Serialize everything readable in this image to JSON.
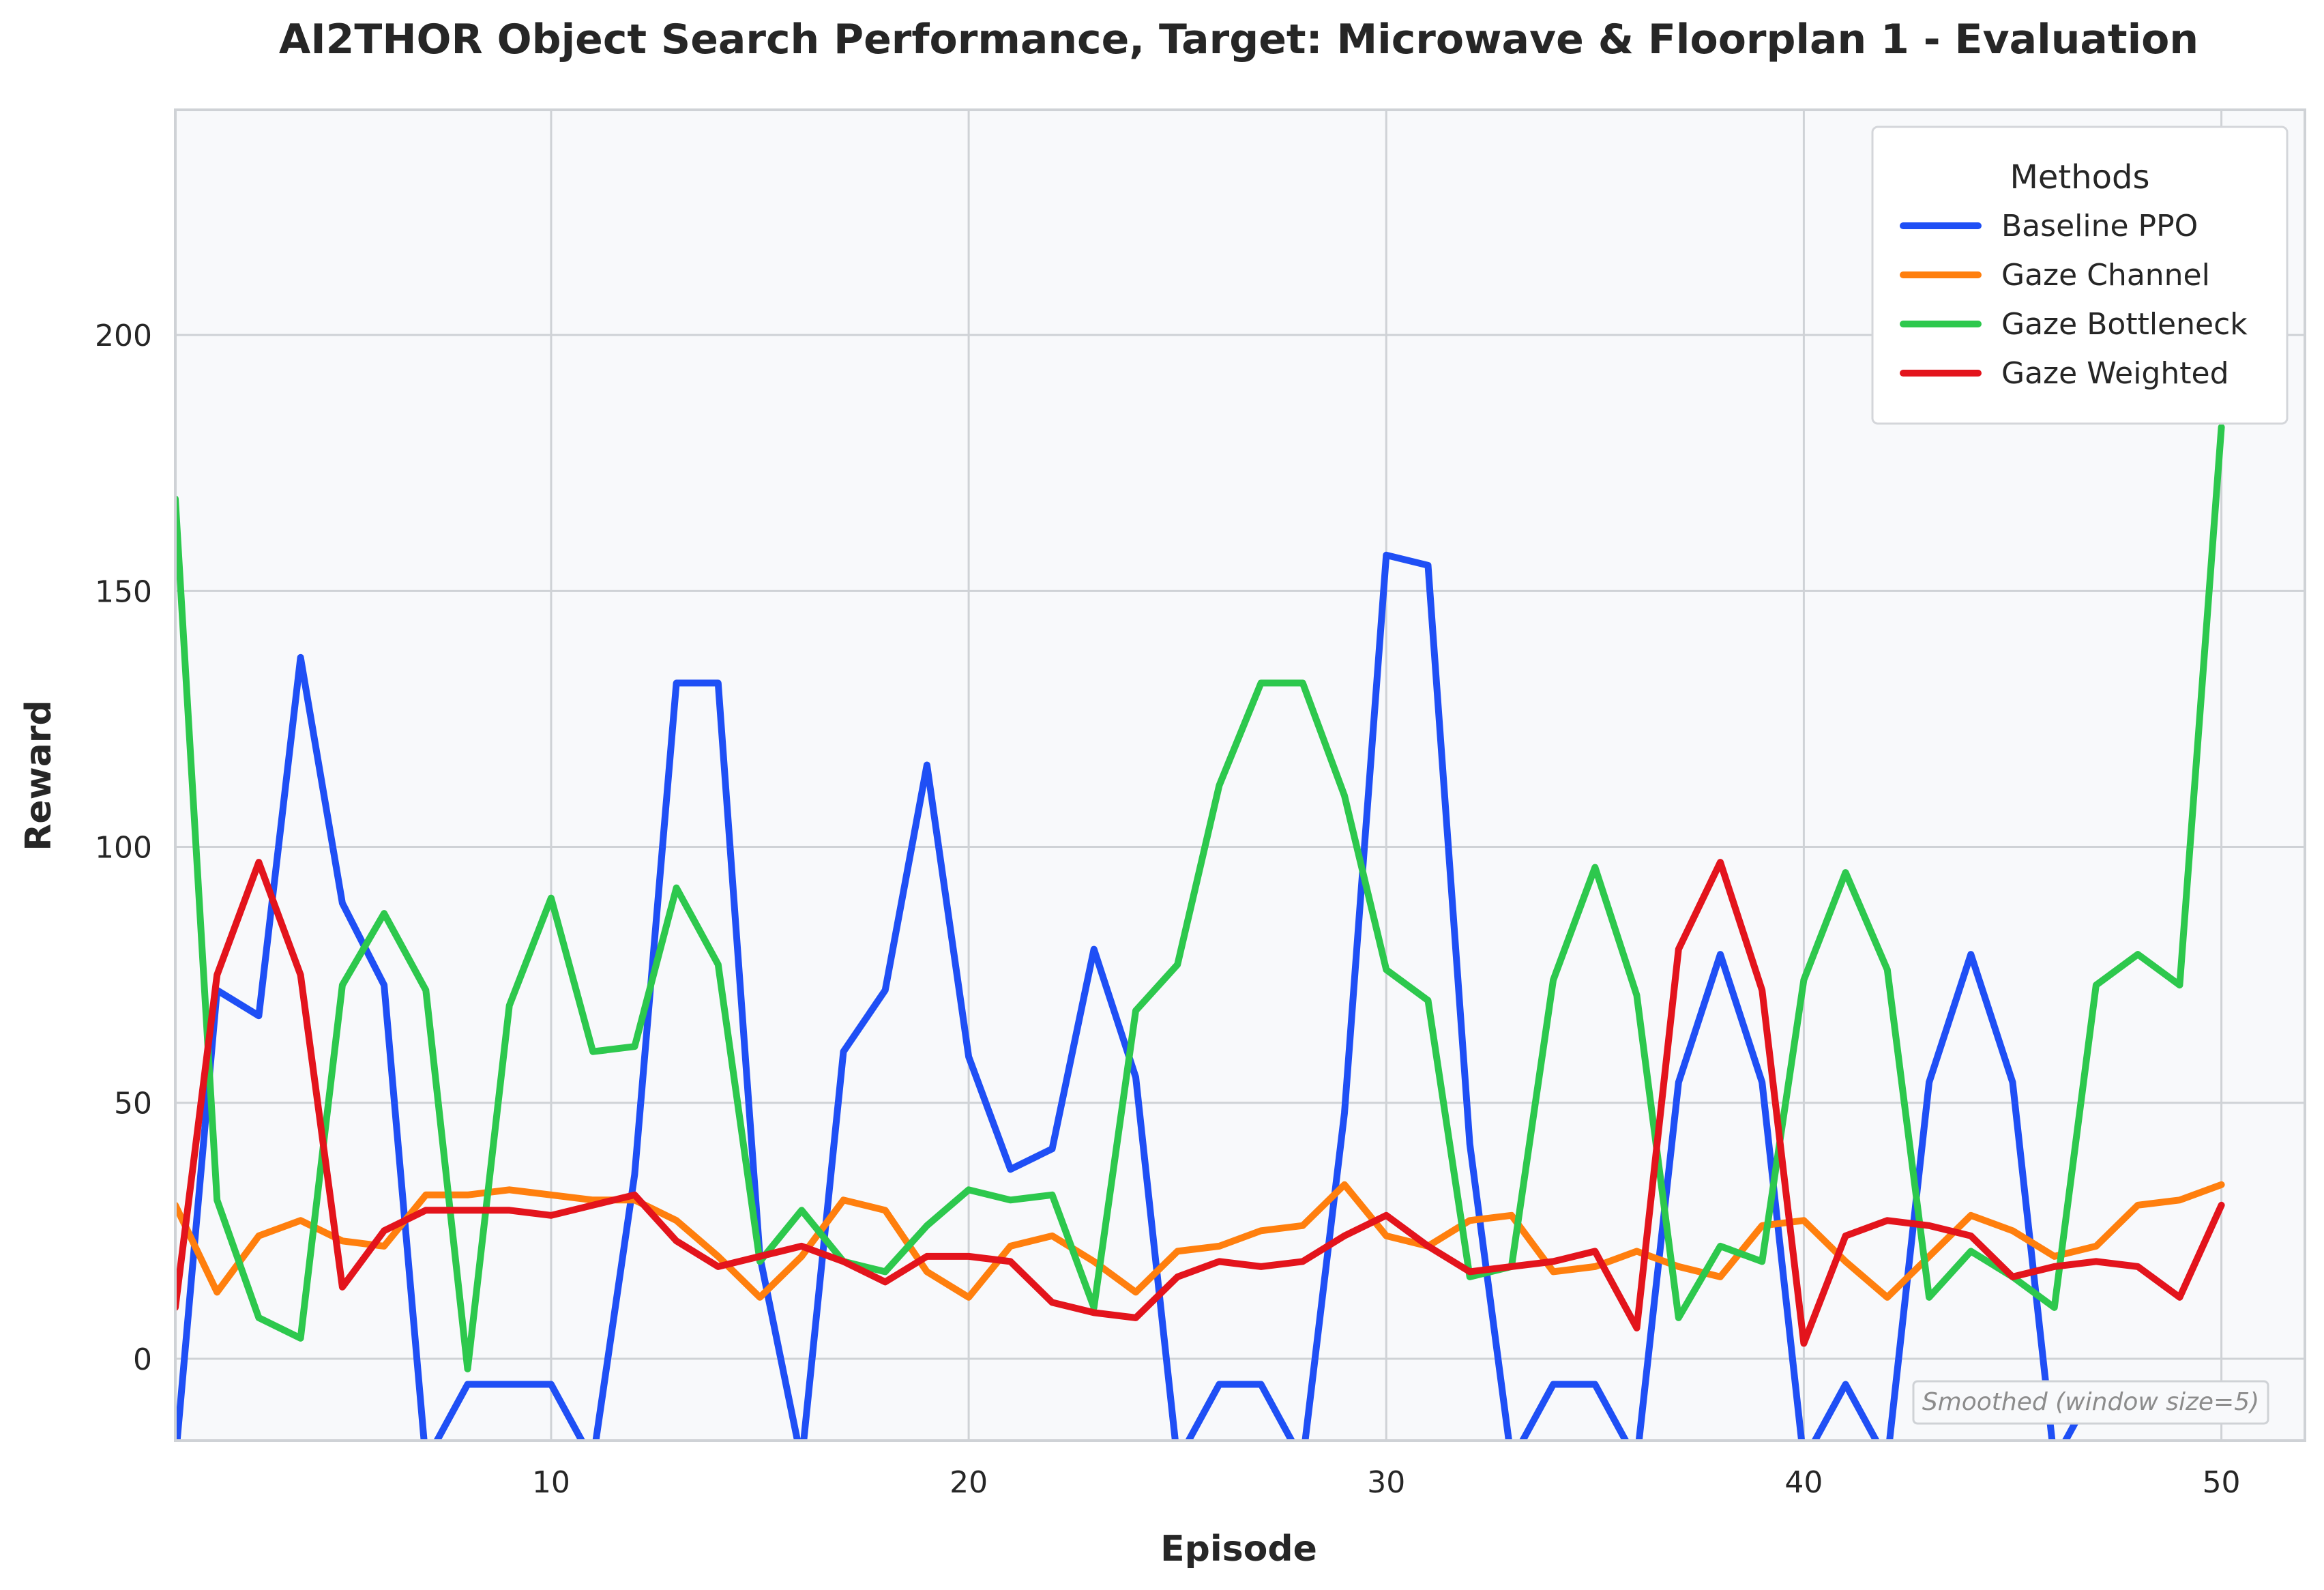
{
  "chart_data": {
    "type": "line",
    "title": "AI2THOR Object Search Performance, Target: Microwave & Floorplan 1 - Evaluation",
    "xlabel": "Episode",
    "ylabel": "Reward",
    "xlim": [
      1,
      52
    ],
    "ylim": [
      -16,
      244
    ],
    "xticks": [
      10,
      20,
      30,
      40,
      50
    ],
    "yticks": [
      0,
      50,
      100,
      150,
      200
    ],
    "grid": true,
    "legend": {
      "title": "Methods",
      "position": "top-right"
    },
    "annotation": "Smoothed (window size=5)",
    "x": [
      1,
      2,
      3,
      4,
      5,
      6,
      7,
      8,
      9,
      10,
      11,
      12,
      13,
      14,
      15,
      16,
      17,
      18,
      19,
      20,
      21,
      22,
      23,
      24,
      25,
      26,
      27,
      28,
      29,
      30,
      31,
      32,
      33,
      34,
      35,
      36,
      37,
      38,
      39,
      40,
      41,
      42,
      43,
      44,
      45,
      46,
      47,
      48,
      49,
      50
    ],
    "series": [
      {
        "name": "Baseline PPO",
        "color": "#1f4ff5",
        "values": [
          -20,
          72,
          67,
          137,
          89,
          73,
          -20,
          -5,
          -5,
          -5,
          -20,
          36,
          132,
          132,
          20,
          -20,
          60,
          72,
          116,
          59,
          37,
          41,
          80,
          55,
          -20,
          -5,
          -5,
          -20,
          48,
          157,
          155,
          42,
          -20,
          -5,
          -5,
          -20,
          54,
          79,
          54,
          -20,
          -5,
          -20,
          54,
          79,
          54,
          -20,
          -5,
          -5,
          -5,
          -5
        ]
      },
      {
        "name": "Gaze Channel",
        "color": "#ff7f0e",
        "values": [
          30,
          13,
          24,
          27,
          23,
          22,
          32,
          32,
          33,
          32,
          31,
          31,
          27,
          20,
          12,
          20,
          31,
          29,
          17,
          12,
          22,
          24,
          19,
          13,
          21,
          22,
          25,
          26,
          34,
          24,
          22,
          27,
          28,
          17,
          18,
          21,
          18,
          16,
          26,
          27,
          19,
          12,
          20,
          28,
          25,
          20,
          22,
          30,
          31,
          34
        ]
      },
      {
        "name": "Gaze Bottleneck",
        "color": "#2dc84d",
        "values": [
          168,
          31,
          8,
          4,
          73,
          87,
          72,
          -2,
          69,
          90,
          60,
          61,
          92,
          77,
          19,
          29,
          19,
          17,
          26,
          33,
          31,
          32,
          10,
          68,
          77,
          112,
          132,
          132,
          110,
          76,
          70,
          16,
          18,
          74,
          96,
          71,
          8,
          22,
          19,
          74,
          95,
          76,
          12,
          21,
          16,
          10,
          73,
          79,
          73,
          182
        ]
      },
      {
        "name": "Gaze Weighted",
        "color": "#e3141c",
        "values": [
          10,
          75,
          97,
          75,
          14,
          25,
          29,
          29,
          29,
          28,
          30,
          32,
          23,
          18,
          20,
          22,
          19,
          15,
          20,
          20,
          19,
          11,
          9,
          8,
          16,
          19,
          18,
          19,
          24,
          28,
          22,
          17,
          18,
          19,
          21,
          6,
          80,
          97,
          72,
          3,
          24,
          27,
          26,
          24,
          16,
          18,
          19,
          18,
          12,
          30
        ]
      }
    ]
  }
}
